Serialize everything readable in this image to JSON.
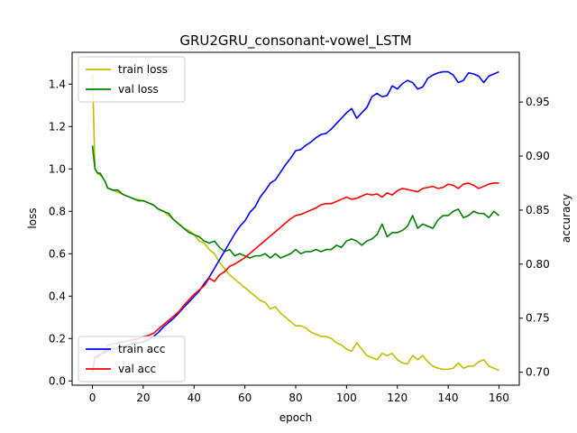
{
  "chart_data": {
    "type": "line",
    "title": "GRU2GRU_consonant-vowel_LSTM",
    "xlabel": "epoch",
    "ylabel_left": "loss",
    "ylabel_right": "accuracy",
    "xlim": [
      -8,
      168
    ],
    "ylim_left": [
      -0.02,
      1.55
    ],
    "ylim_right": [
      0.688,
      0.996
    ],
    "x_ticks": [
      0,
      20,
      40,
      60,
      80,
      100,
      120,
      140,
      160
    ],
    "y_ticks_left": [
      0.0,
      0.2,
      0.4,
      0.6,
      0.8,
      1.0,
      1.2,
      1.4
    ],
    "y_ticks_right": [
      0.7,
      0.75,
      0.8,
      0.85,
      0.9,
      0.95
    ],
    "legend_loss_position": "upper-left",
    "legend_acc_position": "lower-left",
    "series_loss": [
      {
        "name": "train loss",
        "color": "#bfbf00",
        "axis": "left",
        "x": [
          0,
          1,
          2,
          3,
          4,
          5,
          6,
          8,
          10,
          12,
          14,
          16,
          18,
          20,
          22,
          24,
          26,
          28,
          30,
          32,
          34,
          36,
          38,
          40,
          42,
          44,
          46,
          48,
          50,
          52,
          54,
          56,
          58,
          60,
          62,
          64,
          66,
          68,
          70,
          72,
          74,
          76,
          78,
          80,
          82,
          84,
          86,
          88,
          90,
          92,
          94,
          96,
          98,
          100,
          102,
          104,
          106,
          108,
          110,
          112,
          114,
          116,
          118,
          120,
          122,
          124,
          126,
          128,
          130,
          132,
          134,
          136,
          138,
          140,
          142,
          144,
          146,
          148,
          150,
          152,
          154,
          156,
          158,
          160
        ],
        "y": [
          1.45,
          1.0,
          0.98,
          0.97,
          0.96,
          0.94,
          0.91,
          0.9,
          0.89,
          0.88,
          0.87,
          0.86,
          0.855,
          0.85,
          0.84,
          0.83,
          0.81,
          0.8,
          0.78,
          0.76,
          0.74,
          0.72,
          0.71,
          0.69,
          0.66,
          0.65,
          0.62,
          0.6,
          0.56,
          0.53,
          0.5,
          0.48,
          0.46,
          0.44,
          0.42,
          0.4,
          0.38,
          0.37,
          0.34,
          0.35,
          0.32,
          0.3,
          0.28,
          0.26,
          0.26,
          0.25,
          0.23,
          0.22,
          0.21,
          0.21,
          0.2,
          0.18,
          0.17,
          0.15,
          0.14,
          0.18,
          0.15,
          0.12,
          0.11,
          0.1,
          0.13,
          0.12,
          0.13,
          0.1,
          0.085,
          0.08,
          0.12,
          0.1,
          0.12,
          0.09,
          0.07,
          0.06,
          0.055,
          0.055,
          0.06,
          0.085,
          0.06,
          0.07,
          0.07,
          0.09,
          0.1,
          0.07,
          0.06,
          0.05
        ]
      },
      {
        "name": "val loss",
        "color": "#008000",
        "axis": "left",
        "x": [
          0,
          1,
          2,
          3,
          4,
          5,
          6,
          8,
          10,
          12,
          14,
          16,
          18,
          20,
          22,
          24,
          26,
          28,
          30,
          32,
          34,
          36,
          38,
          40,
          42,
          44,
          46,
          48,
          50,
          52,
          54,
          56,
          58,
          60,
          62,
          64,
          66,
          68,
          70,
          72,
          74,
          76,
          78,
          80,
          82,
          84,
          86,
          88,
          90,
          92,
          94,
          96,
          98,
          100,
          102,
          104,
          106,
          108,
          110,
          112,
          114,
          116,
          118,
          120,
          122,
          124,
          126,
          128,
          130,
          132,
          134,
          136,
          138,
          140,
          142,
          144,
          146,
          148,
          150,
          152,
          154,
          156,
          158,
          160
        ],
        "y": [
          1.11,
          1.0,
          0.98,
          0.98,
          0.96,
          0.94,
          0.91,
          0.9,
          0.9,
          0.88,
          0.87,
          0.86,
          0.85,
          0.85,
          0.84,
          0.83,
          0.81,
          0.8,
          0.79,
          0.76,
          0.74,
          0.72,
          0.7,
          0.69,
          0.68,
          0.66,
          0.65,
          0.66,
          0.63,
          0.61,
          0.62,
          0.59,
          0.6,
          0.59,
          0.58,
          0.59,
          0.59,
          0.6,
          0.58,
          0.6,
          0.58,
          0.59,
          0.6,
          0.62,
          0.6,
          0.61,
          0.61,
          0.62,
          0.61,
          0.62,
          0.62,
          0.64,
          0.63,
          0.66,
          0.67,
          0.66,
          0.64,
          0.66,
          0.67,
          0.69,
          0.74,
          0.68,
          0.7,
          0.7,
          0.71,
          0.73,
          0.78,
          0.72,
          0.74,
          0.73,
          0.72,
          0.76,
          0.78,
          0.78,
          0.8,
          0.81,
          0.77,
          0.78,
          0.8,
          0.79,
          0.79,
          0.77,
          0.8,
          0.78
        ]
      }
    ],
    "series_acc": [
      {
        "name": "train acc",
        "color": "#0000ff",
        "axis": "right",
        "x": [
          0,
          1,
          2,
          3,
          4,
          5,
          6,
          8,
          10,
          12,
          14,
          16,
          18,
          20,
          22,
          24,
          26,
          28,
          30,
          32,
          34,
          36,
          38,
          40,
          42,
          44,
          46,
          48,
          50,
          52,
          54,
          56,
          58,
          60,
          62,
          64,
          66,
          68,
          70,
          72,
          74,
          76,
          78,
          80,
          82,
          84,
          86,
          88,
          90,
          92,
          94,
          96,
          98,
          100,
          102,
          104,
          106,
          108,
          110,
          112,
          114,
          116,
          118,
          120,
          122,
          124,
          126,
          128,
          130,
          132,
          134,
          136,
          138,
          140,
          142,
          144,
          146,
          148,
          150,
          152,
          154,
          156,
          158,
          160
        ],
        "y": [
          0.7,
          0.714,
          0.714,
          0.716,
          0.718,
          0.718,
          0.72,
          0.722,
          0.722,
          0.724,
          0.725,
          0.727,
          0.727,
          0.728,
          0.73,
          0.733,
          0.737,
          0.742,
          0.746,
          0.75,
          0.755,
          0.76,
          0.765,
          0.77,
          0.775,
          0.782,
          0.788,
          0.796,
          0.804,
          0.812,
          0.82,
          0.828,
          0.835,
          0.84,
          0.848,
          0.853,
          0.862,
          0.868,
          0.875,
          0.878,
          0.885,
          0.892,
          0.898,
          0.905,
          0.906,
          0.91,
          0.913,
          0.917,
          0.92,
          0.921,
          0.925,
          0.93,
          0.935,
          0.94,
          0.944,
          0.935,
          0.94,
          0.945,
          0.955,
          0.958,
          0.955,
          0.956,
          0.965,
          0.962,
          0.967,
          0.97,
          0.968,
          0.962,
          0.964,
          0.972,
          0.975,
          0.977,
          0.978,
          0.978,
          0.975,
          0.968,
          0.97,
          0.977,
          0.976,
          0.974,
          0.968,
          0.974,
          0.976,
          0.978
        ]
      },
      {
        "name": "val acc",
        "color": "#ff0000",
        "axis": "right",
        "x": [
          0,
          1,
          2,
          3,
          4,
          5,
          6,
          8,
          10,
          12,
          14,
          16,
          18,
          20,
          22,
          24,
          26,
          28,
          30,
          32,
          34,
          36,
          38,
          40,
          42,
          44,
          46,
          48,
          50,
          52,
          54,
          56,
          58,
          60,
          62,
          64,
          66,
          68,
          70,
          72,
          74,
          76,
          78,
          80,
          82,
          84,
          86,
          88,
          90,
          92,
          94,
          96,
          98,
          100,
          102,
          104,
          106,
          108,
          110,
          112,
          114,
          116,
          118,
          120,
          122,
          124,
          126,
          128,
          130,
          132,
          134,
          136,
          138,
          140,
          142,
          144,
          146,
          148,
          150,
          152,
          154,
          156,
          158,
          160
        ],
        "y": [
          0.7,
          0.714,
          0.715,
          0.717,
          0.718,
          0.72,
          0.725,
          0.726,
          0.727,
          0.728,
          0.729,
          0.73,
          0.731,
          0.733,
          0.734,
          0.736,
          0.74,
          0.744,
          0.748,
          0.752,
          0.756,
          0.762,
          0.767,
          0.772,
          0.776,
          0.78,
          0.787,
          0.784,
          0.79,
          0.793,
          0.798,
          0.8,
          0.803,
          0.806,
          0.81,
          0.814,
          0.818,
          0.822,
          0.826,
          0.83,
          0.834,
          0.838,
          0.842,
          0.845,
          0.846,
          0.848,
          0.85,
          0.852,
          0.855,
          0.856,
          0.856,
          0.858,
          0.86,
          0.862,
          0.86,
          0.861,
          0.863,
          0.865,
          0.864,
          0.865,
          0.862,
          0.866,
          0.864,
          0.868,
          0.87,
          0.869,
          0.868,
          0.867,
          0.87,
          0.871,
          0.872,
          0.87,
          0.871,
          0.874,
          0.873,
          0.87,
          0.874,
          0.875,
          0.873,
          0.87,
          0.872,
          0.874,
          0.875,
          0.875
        ]
      }
    ]
  }
}
